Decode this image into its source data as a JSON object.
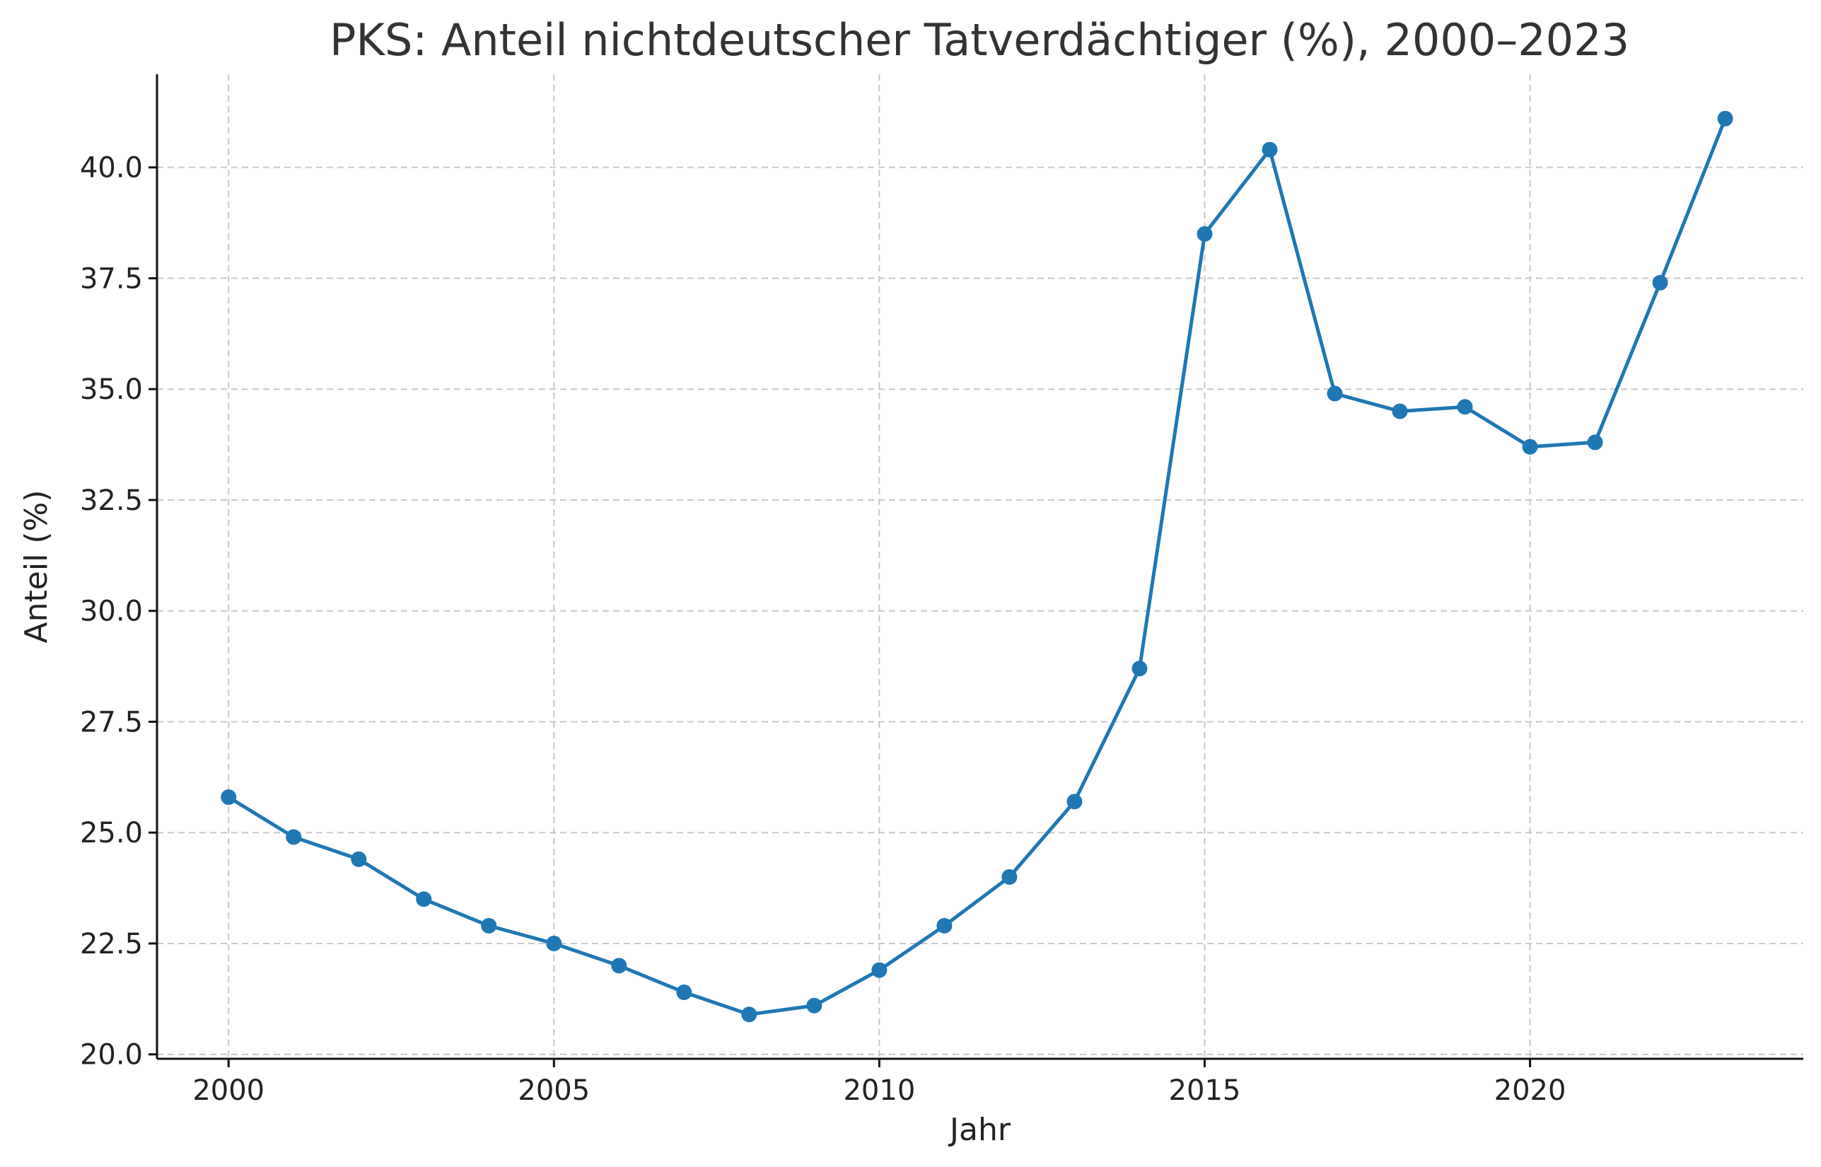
{
  "chart_data": {
    "type": "line",
    "title": "PKS: Anteil nichtdeutscher Tatverdächtiger (%), 2000–2023",
    "xlabel": "Jahr",
    "ylabel": "Anteil (%)",
    "xlim": [
      1998.9,
      2024.2
    ],
    "ylim": [
      19.9,
      42.1
    ],
    "x_ticks": [
      2000,
      2005,
      2010,
      2015,
      2020
    ],
    "y_ticks": [
      20.0,
      22.5,
      25.0,
      27.5,
      30.0,
      32.5,
      35.0,
      37.5,
      40.0
    ],
    "x_tick_labels": [
      "2000",
      "2005",
      "2010",
      "2015",
      "2020"
    ],
    "y_tick_labels": [
      "20.0",
      "22.5",
      "25.0",
      "27.5",
      "30.0",
      "32.5",
      "35.0",
      "37.5",
      "40.0"
    ],
    "grid": true,
    "marker": "circle",
    "color": "#1f77b4",
    "series": [
      {
        "x": [
          2000,
          2001,
          2002,
          2003,
          2004,
          2005,
          2006,
          2007,
          2008,
          2009,
          2010,
          2011,
          2012,
          2013,
          2014,
          2015,
          2016,
          2017,
          2018,
          2019,
          2020,
          2021,
          2022,
          2023
        ],
        "values": [
          25.8,
          24.9,
          24.4,
          23.5,
          22.9,
          22.5,
          22.0,
          21.4,
          20.9,
          21.1,
          21.9,
          22.9,
          24.0,
          25.7,
          28.7,
          38.5,
          40.4,
          34.9,
          34.5,
          34.6,
          33.7,
          33.8,
          37.4,
          41.1
        ]
      }
    ]
  }
}
